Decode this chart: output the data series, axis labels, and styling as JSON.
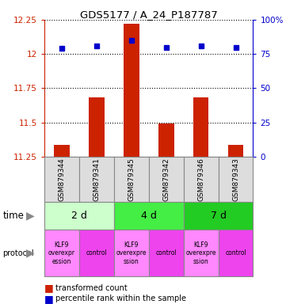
{
  "title": "GDS5177 / A_24_P187787",
  "samples": [
    "GSM879344",
    "GSM879341",
    "GSM879345",
    "GSM879342",
    "GSM879346",
    "GSM879343"
  ],
  "bar_values": [
    11.335,
    11.68,
    12.22,
    11.49,
    11.68,
    11.335
  ],
  "dot_values": [
    79,
    81,
    85,
    80,
    81,
    80
  ],
  "bar_bottom": 11.25,
  "ylim_left": [
    11.25,
    12.25
  ],
  "ylim_right": [
    0,
    100
  ],
  "yticks_left": [
    11.25,
    11.5,
    11.75,
    12.0,
    12.25
  ],
  "ytick_labels_left": [
    "11.25",
    "11.5",
    "11.75",
    "12",
    "12.25"
  ],
  "yticks_right": [
    0,
    25,
    50,
    75,
    100
  ],
  "ytick_labels_right": [
    "0",
    "25",
    "50",
    "75",
    "100%"
  ],
  "bar_color": "#cc2200",
  "dot_color": "#0000cc",
  "time_groups": [
    {
      "label": "2 d",
      "start": 0,
      "end": 2,
      "color": "#ccffcc"
    },
    {
      "label": "4 d",
      "start": 2,
      "end": 4,
      "color": "#44ee44"
    },
    {
      "label": "7 d",
      "start": 4,
      "end": 6,
      "color": "#22cc22"
    }
  ],
  "protocol_groups": [
    {
      "label": "KLF9\noverexpr\nession",
      "start": 0,
      "end": 1,
      "color": "#ff88ff"
    },
    {
      "label": "control",
      "start": 1,
      "end": 2,
      "color": "#ee44ee"
    },
    {
      "label": "KLF9\noverexpre\nssion",
      "start": 2,
      "end": 3,
      "color": "#ff88ff"
    },
    {
      "label": "control",
      "start": 3,
      "end": 4,
      "color": "#ee44ee"
    },
    {
      "label": "KLF9\noverexpre\nssion",
      "start": 4,
      "end": 5,
      "color": "#ff88ff"
    },
    {
      "label": "control",
      "start": 5,
      "end": 6,
      "color": "#ee44ee"
    }
  ],
  "legend_bar_label": "transformed count",
  "legend_dot_label": "percentile rank within the sample",
  "ylabel_left_color": "#cc2200",
  "ylabel_right_color": "#0000cc",
  "bg_color": "#ffffff"
}
